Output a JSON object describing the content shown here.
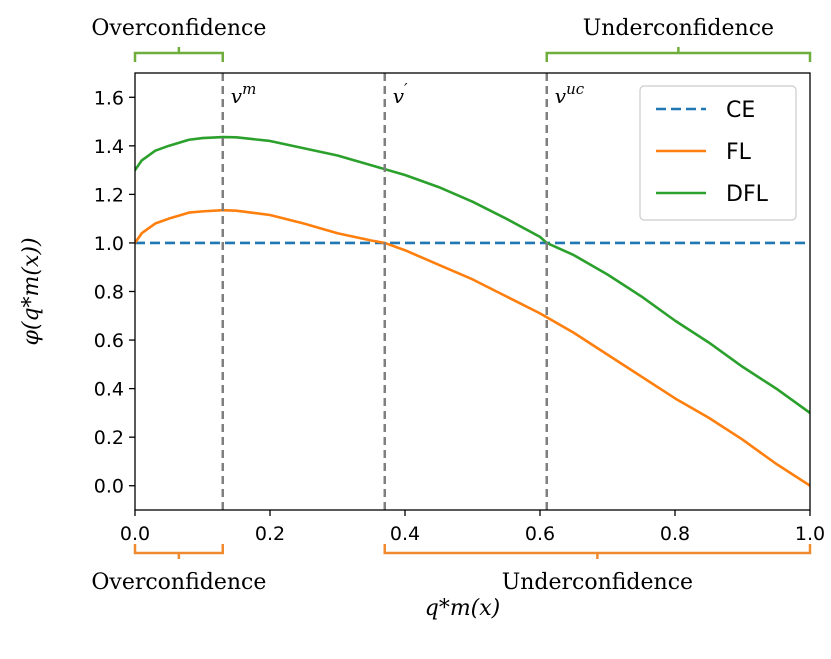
{
  "chart_data": {
    "type": "line",
    "xlabel": "q*m(x)",
    "ylabel": "φ(q*m(x))",
    "xlim": [
      0.0,
      1.0
    ],
    "ylim": [
      -0.1,
      1.7
    ],
    "xticks": [
      0.0,
      0.2,
      0.4,
      0.6,
      0.8,
      1.0
    ],
    "xtick_labels": [
      "0.0",
      "0.2",
      "0.4",
      "0.6",
      "0.8",
      "1.0"
    ],
    "yticks": [
      0.0,
      0.2,
      0.4,
      0.6,
      0.8,
      1.0,
      1.2,
      1.4,
      1.6
    ],
    "ytick_labels": [
      "0.0",
      "0.2",
      "0.4",
      "0.6",
      "0.8",
      "1.0",
      "1.2",
      "1.4",
      "1.6"
    ],
    "legend_position": "top-right",
    "series": [
      {
        "name": "CE",
        "color": "#1f77b4",
        "style": "dashed",
        "x": [
          0.0,
          1.0
        ],
        "y": [
          1.0,
          1.0
        ]
      },
      {
        "name": "FL",
        "color": "#ff7f0e",
        "style": "solid",
        "x": [
          0.0,
          0.01,
          0.03,
          0.05,
          0.08,
          0.1,
          0.13,
          0.15,
          0.2,
          0.25,
          0.3,
          0.35,
          0.37,
          0.4,
          0.45,
          0.5,
          0.55,
          0.6,
          0.65,
          0.7,
          0.75,
          0.8,
          0.85,
          0.9,
          0.95,
          1.0
        ],
        "y": [
          1.0,
          1.04,
          1.08,
          1.1,
          1.125,
          1.13,
          1.135,
          1.133,
          1.115,
          1.08,
          1.04,
          1.01,
          1.0,
          0.97,
          0.91,
          0.85,
          0.78,
          0.71,
          0.63,
          0.54,
          0.45,
          0.36,
          0.28,
          0.19,
          0.09,
          0.0
        ]
      },
      {
        "name": "DFL",
        "color": "#2ca02c",
        "style": "solid",
        "x": [
          0.0,
          0.01,
          0.03,
          0.05,
          0.08,
          0.1,
          0.13,
          0.15,
          0.2,
          0.25,
          0.3,
          0.35,
          0.4,
          0.45,
          0.5,
          0.55,
          0.6,
          0.61,
          0.65,
          0.7,
          0.75,
          0.8,
          0.85,
          0.9,
          0.95,
          1.0
        ],
        "y": [
          1.3,
          1.34,
          1.38,
          1.4,
          1.425,
          1.432,
          1.436,
          1.435,
          1.42,
          1.39,
          1.36,
          1.32,
          1.28,
          1.23,
          1.17,
          1.1,
          1.025,
          1.0,
          0.95,
          0.87,
          0.78,
          0.68,
          0.59,
          0.49,
          0.4,
          0.3
        ]
      }
    ],
    "vlines": [
      {
        "x": 0.13,
        "label": "v^m",
        "base": "v",
        "sup": "m"
      },
      {
        "x": 0.37,
        "label": "v'",
        "base": "v",
        "sup": "′"
      },
      {
        "x": 0.61,
        "label": "v^uc",
        "base": "v",
        "sup": "uc"
      }
    ],
    "top_annotations": [
      {
        "text": "Overconfidence",
        "x_start": 0.0,
        "x_end": 0.13,
        "color": "#6fad3c"
      },
      {
        "text": "Underconfidence",
        "x_start": 0.61,
        "x_end": 1.0,
        "color": "#6fad3c"
      }
    ],
    "bottom_annotations": [
      {
        "text": "Overconfidence",
        "x_start": 0.0,
        "x_end": 0.13,
        "color": "#f08a2e"
      },
      {
        "text": "Underconfidence",
        "x_start": 0.37,
        "x_end": 1.0,
        "color": "#f08a2e"
      }
    ]
  }
}
